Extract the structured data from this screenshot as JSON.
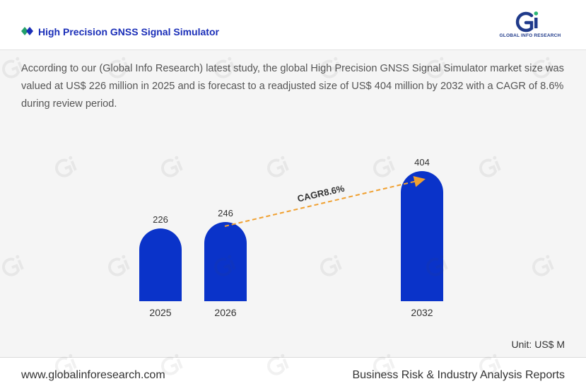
{
  "header": {
    "title": "High Precision GNSS Signal Simulator",
    "logo_text": "GLOBAL INFO RESEARCH",
    "accent_color": "#1a2eb8",
    "icon": "diamond-icon"
  },
  "description": "According to our (Global Info Research) latest study, the global High Precision GNSS Signal Simulator market size was valued at US$ 226 million in 2025 and is forecast to a readjusted size of US$ 404 million by 2032 with a CAGR of 8.6% during review period.",
  "chart_data": {
    "type": "bar",
    "categories": [
      "2025",
      "2026",
      "2032"
    ],
    "values": [
      226,
      246,
      404
    ],
    "value_labels": [
      "226",
      "246",
      "404"
    ],
    "bar_color": "#0a33c9",
    "annotation": "CAGR8.6%",
    "annotation_color": "#f0a030",
    "unit": "Unit: US$ M"
  },
  "footer": {
    "website": "www.globalinforesearch.com",
    "tagline": "Business Risk & Industry Analysis Reports"
  }
}
